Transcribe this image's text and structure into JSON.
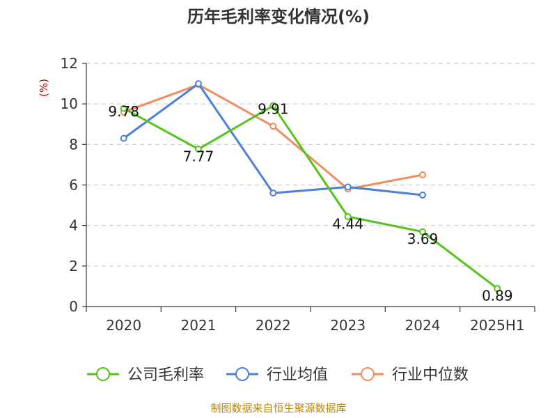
{
  "title": "历年毛利率变化情况(%)",
  "unit": "(%)",
  "source": "制图数据来自恒生聚源数据库",
  "chart_data": {
    "type": "line",
    "title": "历年毛利率变化情况(%)",
    "ylabel": "(%)",
    "ylim": [
      0,
      12
    ],
    "yticks": [
      0,
      2,
      4,
      6,
      8,
      10,
      12
    ],
    "grid": true,
    "legend_position": "bottom",
    "categories": [
      "2020",
      "2021",
      "2022",
      "2023",
      "2024",
      "2025H1"
    ],
    "series": [
      {
        "name": "公司毛利率",
        "color": "#52c41a",
        "values": [
          9.78,
          7.77,
          9.91,
          4.44,
          3.69,
          0.89
        ],
        "labels": [
          "9.78",
          "7.77",
          "9.91",
          "4.44",
          "3.69",
          "0.89"
        ]
      },
      {
        "name": "行业均值",
        "color": "#4a7fdd",
        "values": [
          8.3,
          11.0,
          5.6,
          5.9,
          5.5,
          null
        ]
      },
      {
        "name": "行业中位数",
        "color": "#f28c5e",
        "values": [
          9.6,
          10.95,
          8.9,
          5.8,
          6.5,
          null
        ]
      }
    ]
  }
}
